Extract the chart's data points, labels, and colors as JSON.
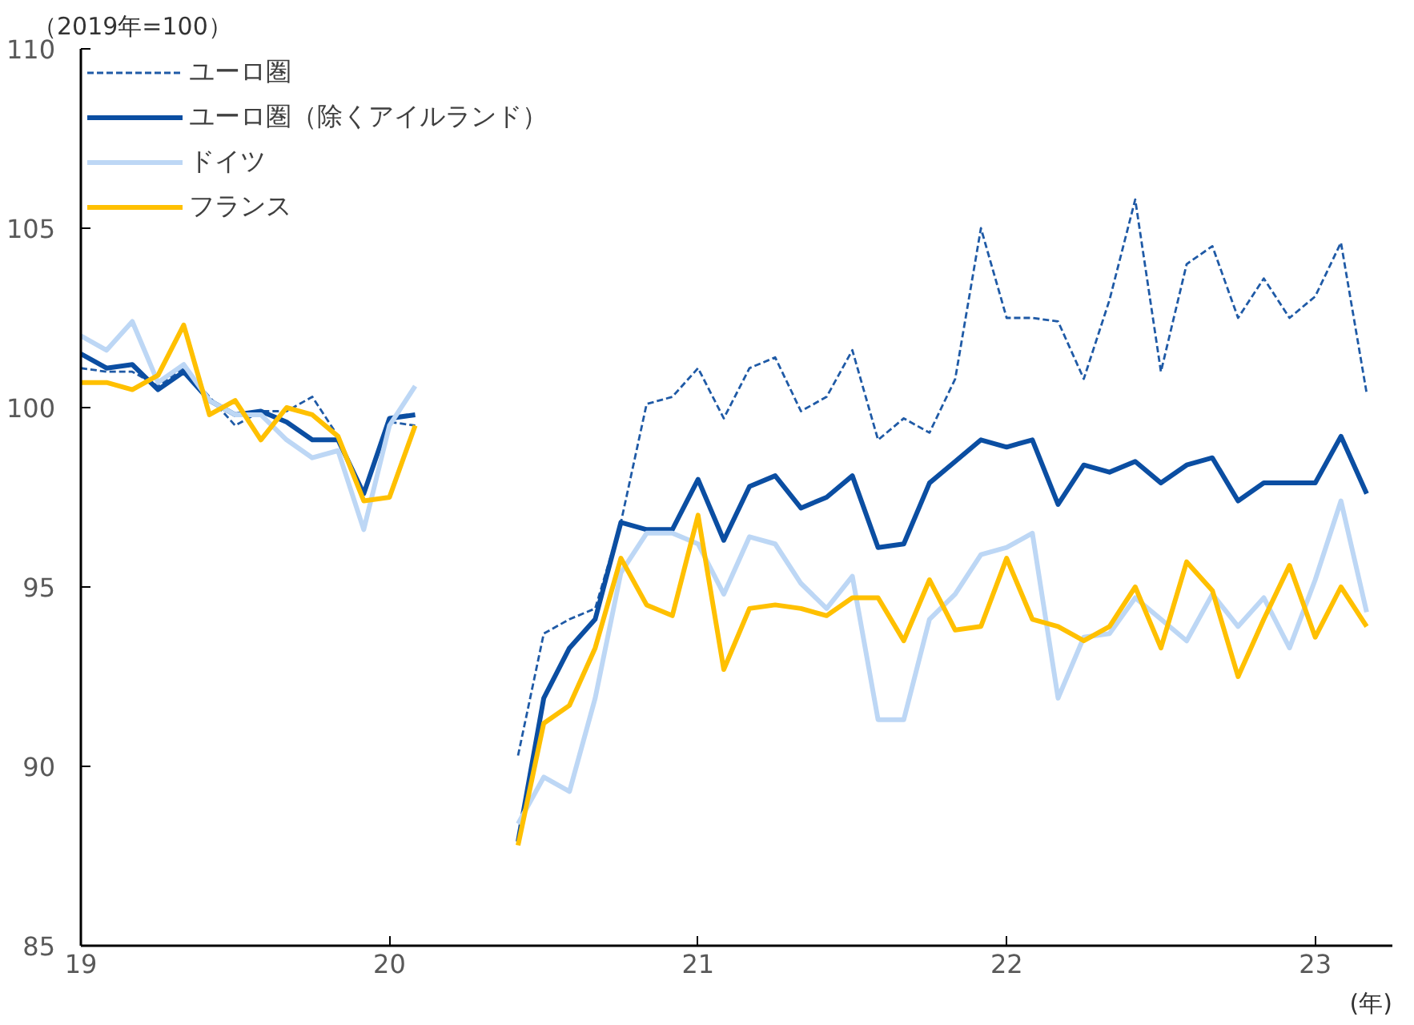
{
  "chart_data": {
    "type": "line",
    "ylabel": "（2019年=100）",
    "xlabel": "(年)",
    "x": [
      "2019-01",
      "2019-02",
      "2019-03",
      "2019-04",
      "2019-05",
      "2019-06",
      "2019-07",
      "2019-08",
      "2019-09",
      "2019-10",
      "2019-11",
      "2019-12",
      "2020-01",
      "2020-02",
      "2020-03",
      "2020-04",
      "2020-05",
      "2020-06",
      "2020-07",
      "2020-08",
      "2020-09",
      "2020-10",
      "2020-11",
      "2020-12",
      "2021-01",
      "2021-02",
      "2021-03",
      "2021-04",
      "2021-05",
      "2021-06",
      "2021-07",
      "2021-08",
      "2021-09",
      "2021-10",
      "2021-11",
      "2021-12",
      "2022-01",
      "2022-02",
      "2022-03",
      "2022-04",
      "2022-05",
      "2022-06",
      "2022-07",
      "2022-08",
      "2022-09",
      "2022-10",
      "2022-11",
      "2022-12",
      "2023-01",
      "2023-02",
      "2023-03"
    ],
    "series": [
      {
        "name": "ユーロ圏",
        "color": "#1f5aa6",
        "line_style": "dashed",
        "values": [
          101.1,
          101.0,
          101.0,
          100.6,
          101.1,
          100.3,
          99.5,
          99.9,
          99.9,
          100.3,
          99.2,
          97.6,
          99.6,
          99.5,
          null,
          null,
          null,
          90.3,
          93.7,
          94.1,
          94.4,
          96.8,
          100.1,
          100.3,
          101.1,
          99.7,
          101.1,
          101.4,
          99.9,
          100.3,
          101.6,
          99.1,
          99.7,
          99.3,
          100.8,
          105.0,
          102.5,
          102.5,
          102.4,
          100.8,
          103.0,
          105.8,
          101.0,
          104.0,
          104.5,
          102.5,
          103.6,
          102.5,
          103.1,
          104.6,
          100.4
        ]
      },
      {
        "name": "ユーロ圏（除くアイルランド）",
        "color": "#0b4ea2",
        "line_style": "solid",
        "values": [
          101.5,
          101.1,
          101.2,
          100.5,
          101.0,
          100.2,
          99.8,
          99.9,
          99.6,
          99.1,
          99.1,
          97.6,
          99.7,
          99.8,
          null,
          null,
          null,
          87.9,
          91.9,
          93.3,
          94.1,
          96.8,
          96.6,
          96.6,
          98.0,
          96.3,
          97.8,
          98.1,
          97.2,
          97.5,
          98.1,
          96.1,
          96.2,
          97.9,
          98.5,
          99.1,
          98.9,
          99.1,
          97.3,
          98.4,
          98.2,
          98.5,
          97.9,
          98.4,
          98.6,
          97.4,
          97.9,
          97.9,
          97.9,
          99.2,
          97.6
        ]
      },
      {
        "name": "ドイツ",
        "color": "#bdd7f5",
        "line_style": "solid",
        "values": [
          102.0,
          101.6,
          102.4,
          100.7,
          101.2,
          100.2,
          99.8,
          99.8,
          99.1,
          98.6,
          98.8,
          96.6,
          99.5,
          100.6,
          null,
          null,
          null,
          88.4,
          89.7,
          89.3,
          91.9,
          95.4,
          96.5,
          96.5,
          96.2,
          94.8,
          96.4,
          96.2,
          95.1,
          94.4,
          95.3,
          91.3,
          91.3,
          94.1,
          94.8,
          95.9,
          96.1,
          96.5,
          91.9,
          93.6,
          93.7,
          94.7,
          94.1,
          93.5,
          94.8,
          93.9,
          94.7,
          93.3,
          95.2,
          97.4,
          94.3
        ]
      },
      {
        "name": "フランス",
        "color": "#ffc000",
        "line_style": "solid",
        "values": [
          100.7,
          100.7,
          100.5,
          100.9,
          102.3,
          99.8,
          100.2,
          99.1,
          100.0,
          99.8,
          99.2,
          97.4,
          97.5,
          99.5,
          null,
          null,
          null,
          87.8,
          91.2,
          91.7,
          93.3,
          95.8,
          94.5,
          94.2,
          97.0,
          92.7,
          94.4,
          94.5,
          94.4,
          94.2,
          94.7,
          94.7,
          93.5,
          95.2,
          93.8,
          93.9,
          95.8,
          94.1,
          93.9,
          93.5,
          93.9,
          95.0,
          93.3,
          95.7,
          94.9,
          92.5,
          94.1,
          95.6,
          93.6,
          95.0,
          93.9
        ]
      }
    ],
    "xlim": [
      "2019-01",
      "2023-04"
    ],
    "xticks": [
      {
        "value": "2019",
        "label": "19"
      },
      {
        "value": "2020",
        "label": "20"
      },
      {
        "value": "2021",
        "label": "21"
      },
      {
        "value": "2022",
        "label": "22"
      },
      {
        "value": "2023",
        "label": "23"
      }
    ],
    "ylim": [
      85,
      110
    ],
    "yticks": [
      85,
      90,
      95,
      100,
      105,
      110
    ],
    "grid": false,
    "legend": "top left",
    "marker": "none"
  }
}
